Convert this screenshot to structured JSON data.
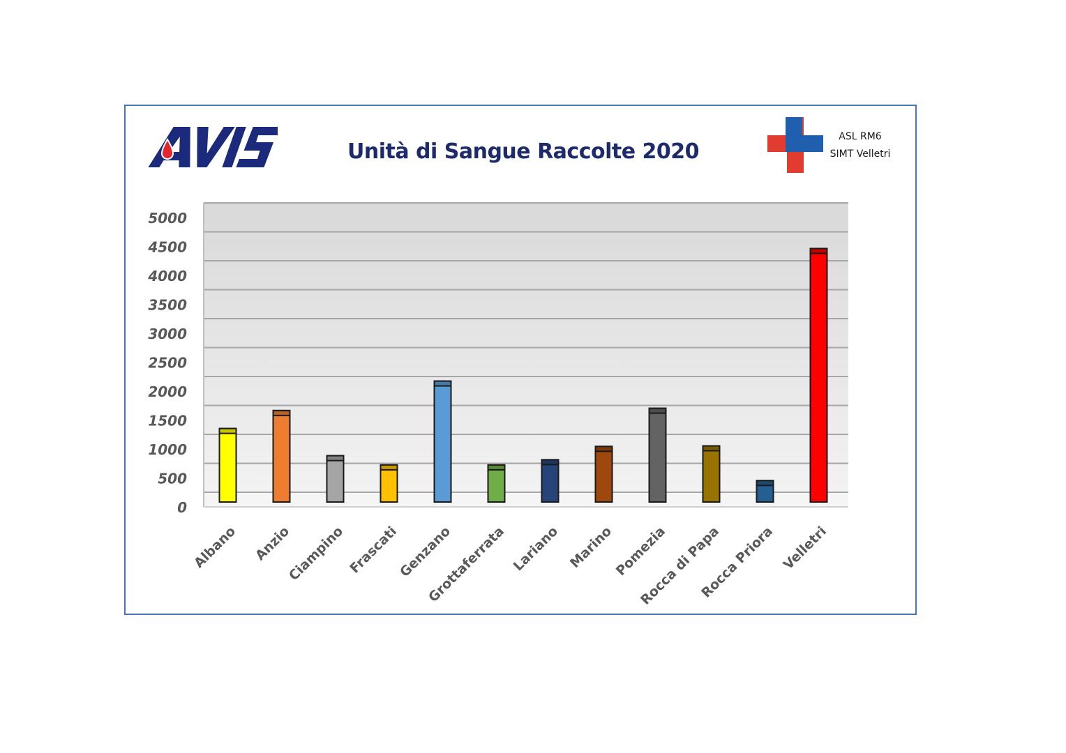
{
  "header": {
    "logo_text": "AVIS",
    "title": "Unità di Sangue Raccolte 2020",
    "asl_line1": "ASL RM6",
    "asl_line2": "SIMT Velletri"
  },
  "colors": {
    "frame_border": "#4a74b8",
    "title": "#1d2a6b",
    "avis_blue": "#1b2a7b",
    "avis_red": "#e3262d",
    "cross_blue": "#1f5fae",
    "cross_red": "#e23b2f",
    "plot_background_top": "#d9d9d9",
    "plot_background_bottom": "#f2f2f2",
    "grid": "#a6a6a6",
    "tick_text": "#595959"
  },
  "chart_data": {
    "type": "bar",
    "title": "Unità di Sangue Raccolte 2020",
    "xlabel": "",
    "ylabel": "",
    "ylim": [
      0,
      5000
    ],
    "yticks": [
      0,
      500,
      1000,
      1500,
      2000,
      2500,
      3000,
      3500,
      4000,
      4500,
      5000
    ],
    "grid": true,
    "legend": "none",
    "style": "3d-flat",
    "categories": [
      "Albano",
      "Anzio",
      "Ciampino",
      "Frascati",
      "Genzano",
      "Grottaferrata",
      "Lariano",
      "Marino",
      "Pomezia",
      "Rocca di Papa",
      "Rocca Priora",
      "Velletri"
    ],
    "values": [
      1270,
      1580,
      800,
      640,
      2090,
      640,
      730,
      960,
      1620,
      970,
      370,
      4380
    ],
    "bar_colors": [
      "#ffff00",
      "#ed7d31",
      "#a5a5a5",
      "#ffc000",
      "#5b9bd5",
      "#70ad47",
      "#264478",
      "#9e480e",
      "#636363",
      "#997300",
      "#255e91",
      "#ff0000"
    ]
  }
}
